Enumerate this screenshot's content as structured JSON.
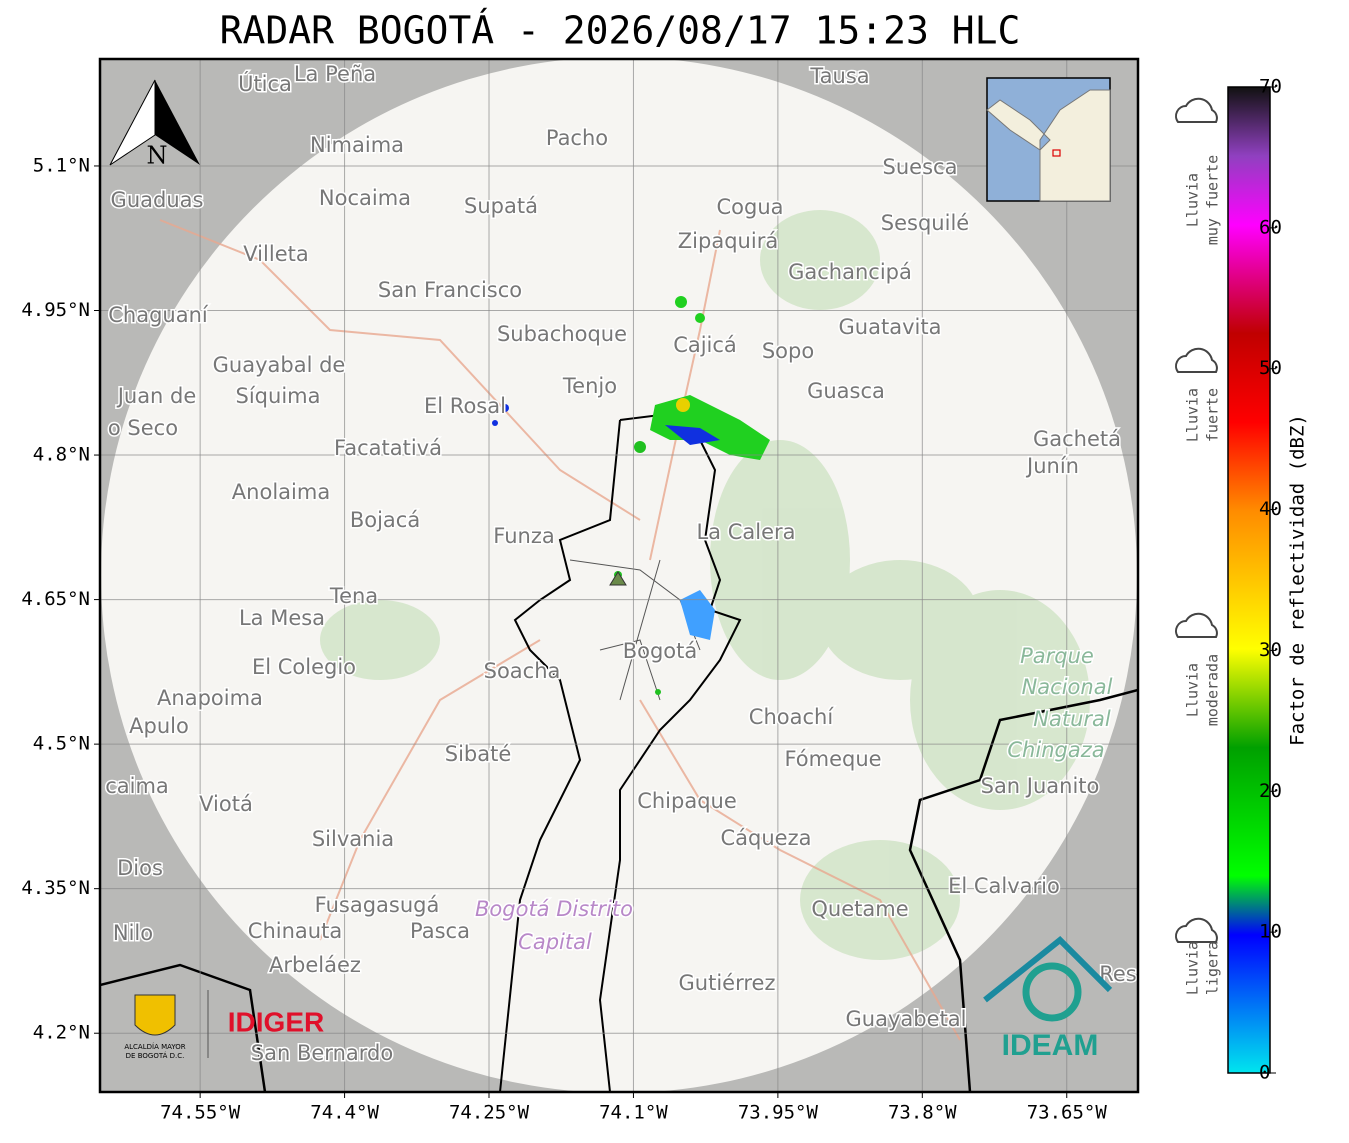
{
  "title": "RADAR BOGOTÁ - 2026/08/17 15:23 HLC",
  "map": {
    "xlim": [
      -74.654,
      -73.576
    ],
    "ylim": [
      4.139,
      5.211
    ],
    "grid": true,
    "compass": "N",
    "xticks": [
      {
        "value": -74.55,
        "label": "74.55°W"
      },
      {
        "value": -74.4,
        "label": "74.4°W"
      },
      {
        "value": -74.25,
        "label": "74.25°W"
      },
      {
        "value": -74.1,
        "label": "74.1°W"
      },
      {
        "value": -73.95,
        "label": "73.95°W"
      },
      {
        "value": -73.8,
        "label": "73.8°W"
      },
      {
        "value": -73.65,
        "label": "73.65°W"
      }
    ],
    "yticks": [
      {
        "value": 5.1,
        "label": "5.1°N"
      },
      {
        "value": 4.95,
        "label": "4.95°N"
      },
      {
        "value": 4.8,
        "label": "4.8°N"
      },
      {
        "value": 4.65,
        "label": "4.65°N"
      },
      {
        "value": 4.5,
        "label": "4.5°N"
      },
      {
        "value": 4.35,
        "label": "4.35°N"
      },
      {
        "value": 4.2,
        "label": "4.2°N"
      }
    ],
    "places": [
      "Útica",
      "La Peña",
      "Tausa",
      "Pacho",
      "Nimaima",
      "Guaduas",
      "Nocaima",
      "Supatá",
      "Cogua",
      "Suesca",
      "Sesquilé",
      "Zipaquirá",
      "Villeta",
      "Gachancipá",
      "San Francisco",
      "Chaguaní",
      "Guatavita",
      "Subachoque",
      "Cajicá",
      "Sopo",
      "Guayabal de",
      "Síquima",
      "Juan de",
      "Tenjo",
      "Guasca",
      "El Rosal",
      "o Seco",
      "Facatativá",
      "Gachetá",
      "Junín",
      "Anolaima",
      "Bojacá",
      "Funza",
      "La Calera",
      "Tena",
      "La Mesa",
      "Soacha",
      "Bogotá",
      "El Colegio",
      "Anapoima",
      "Apulo",
      "Choachí",
      "Sibaté",
      "Fómeque",
      "San Juanito",
      "caima",
      "Viotá",
      "Chipaque",
      "Silvania",
      "Cáqueza",
      "Dios",
      "El Calvario",
      "Fusagasugá",
      "Quetame",
      "Nilo",
      "Chinauta",
      "Pasca",
      "Arbeláez",
      "Gutiérrez",
      "Res",
      "Guayabetal",
      "San Bernardo",
      "Parque",
      "Nacional",
      "Natural",
      "Chingaza",
      "Bogotá Distrito",
      "Capital"
    ]
  },
  "colorbar": {
    "label": "Factor de reflectividad (dBZ)",
    "lim": [
      0,
      70
    ],
    "ticks": [
      0,
      10,
      20,
      30,
      40,
      50,
      60,
      70
    ]
  },
  "legend": [
    [
      "Lluvia",
      "muy fuerte"
    ],
    [
      "Lluvia",
      "fuerte"
    ],
    [
      "Lluvia",
      "moderada"
    ],
    [
      "Lluvia",
      "ligera"
    ]
  ],
  "logos": {
    "alcaldia": [
      "ALCALDÍA MAYOR",
      "DE BOGOTÁ D.C."
    ],
    "idiger": "IDIGER",
    "ideam": "IDEAM"
  }
}
